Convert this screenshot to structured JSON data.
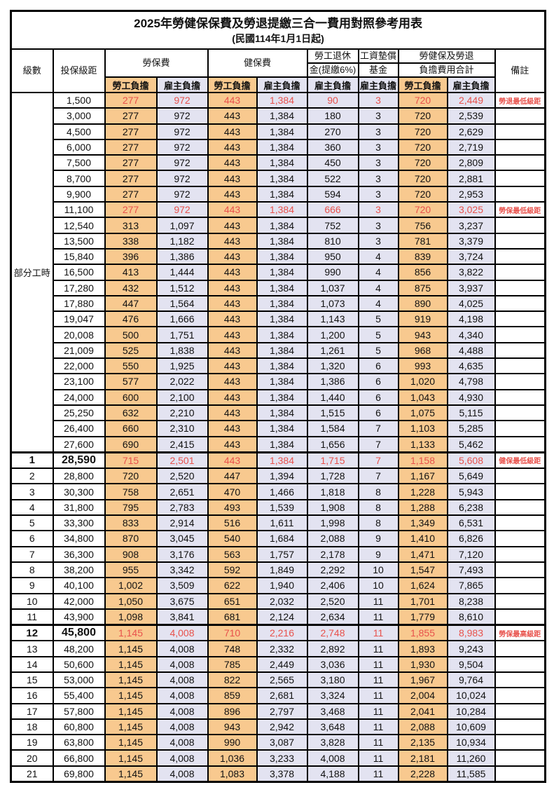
{
  "title": "2025年勞健保保費及勞退提繳三合一費用對照參考用表",
  "subtitle": "(民國114年1月1日起)",
  "columns": {
    "grade": "級數",
    "bracket": "投保級距",
    "labor_ins": "勞保費",
    "health_ins": "健保費",
    "pension_line1": "勞工退休",
    "pension_line2": "金(提繳6%)",
    "wage_fund_line1": "工資墊償",
    "wage_fund_line2": "基金",
    "total_line1": "勞健保及勞退",
    "total_line2": "負擔費用合計",
    "remark": "備註",
    "employee_share": "勞工負擔",
    "employer_share": "雇主負擔"
  },
  "part_time_label": "部分工時",
  "colors": {
    "employee_bg": "#F8C98F",
    "employer_bg": "#E3E3F1",
    "highlight_text": "#E8524C"
  },
  "chart_data": {
    "type": "table",
    "title": "2025年勞健保保費及勞退提繳三合一費用對照參考用表 (民國114年1月1日起)",
    "column_headers": [
      "級數",
      "投保級距",
      "勞保費 勞工負擔",
      "勞保費 雇主負擔",
      "健保費 勞工負擔",
      "健保費 雇主負擔",
      "勞工退休金(提繳6%) 雇主負擔",
      "工資墊償基金 雇主負擔",
      "勞健保及勞退負擔費用合計 勞工負擔",
      "勞健保及勞退負擔費用合計 雇主負擔",
      "備註"
    ]
  },
  "rows": [
    {
      "grade": "",
      "bracket": "1,500",
      "values": [
        "277",
        "972",
        "443",
        "1,384",
        "90",
        "3",
        "720",
        "2,449"
      ],
      "remark": "勞退最低級距",
      "red": true,
      "emph": false
    },
    {
      "grade": "",
      "bracket": "3,000",
      "values": [
        "277",
        "972",
        "443",
        "1,384",
        "180",
        "3",
        "720",
        "2,539"
      ],
      "remark": "",
      "red": false,
      "emph": false
    },
    {
      "grade": "",
      "bracket": "4,500",
      "values": [
        "277",
        "972",
        "443",
        "1,384",
        "270",
        "3",
        "720",
        "2,629"
      ],
      "remark": "",
      "red": false,
      "emph": false
    },
    {
      "grade": "",
      "bracket": "6,000",
      "values": [
        "277",
        "972",
        "443",
        "1,384",
        "360",
        "3",
        "720",
        "2,719"
      ],
      "remark": "",
      "red": false,
      "emph": false
    },
    {
      "grade": "",
      "bracket": "7,500",
      "values": [
        "277",
        "972",
        "443",
        "1,384",
        "450",
        "3",
        "720",
        "2,809"
      ],
      "remark": "",
      "red": false,
      "emph": false
    },
    {
      "grade": "",
      "bracket": "8,700",
      "values": [
        "277",
        "972",
        "443",
        "1,384",
        "522",
        "3",
        "720",
        "2,881"
      ],
      "remark": "",
      "red": false,
      "emph": false
    },
    {
      "grade": "",
      "bracket": "9,900",
      "values": [
        "277",
        "972",
        "443",
        "1,384",
        "594",
        "3",
        "720",
        "2,953"
      ],
      "remark": "",
      "red": false,
      "emph": false
    },
    {
      "grade": "",
      "bracket": "11,100",
      "values": [
        "277",
        "972",
        "443",
        "1,384",
        "666",
        "3",
        "720",
        "3,025"
      ],
      "remark": "勞保最低級距",
      "red": true,
      "emph": false
    },
    {
      "grade": "",
      "bracket": "12,540",
      "values": [
        "313",
        "1,097",
        "443",
        "1,384",
        "752",
        "3",
        "756",
        "3,237"
      ],
      "remark": "",
      "red": false,
      "emph": false
    },
    {
      "grade": "",
      "bracket": "13,500",
      "values": [
        "338",
        "1,182",
        "443",
        "1,384",
        "810",
        "3",
        "781",
        "3,379"
      ],
      "remark": "",
      "red": false,
      "emph": false
    },
    {
      "grade": "",
      "bracket": "15,840",
      "values": [
        "396",
        "1,386",
        "443",
        "1,384",
        "950",
        "4",
        "839",
        "3,724"
      ],
      "remark": "",
      "red": false,
      "emph": false
    },
    {
      "grade": "",
      "bracket": "16,500",
      "values": [
        "413",
        "1,444",
        "443",
        "1,384",
        "990",
        "4",
        "856",
        "3,822"
      ],
      "remark": "",
      "red": false,
      "emph": false
    },
    {
      "grade": "",
      "bracket": "17,280",
      "values": [
        "432",
        "1,512",
        "443",
        "1,384",
        "1,037",
        "4",
        "875",
        "3,937"
      ],
      "remark": "",
      "red": false,
      "emph": false
    },
    {
      "grade": "",
      "bracket": "17,880",
      "values": [
        "447",
        "1,564",
        "443",
        "1,384",
        "1,073",
        "4",
        "890",
        "4,025"
      ],
      "remark": "",
      "red": false,
      "emph": false
    },
    {
      "grade": "",
      "bracket": "19,047",
      "values": [
        "476",
        "1,666",
        "443",
        "1,384",
        "1,143",
        "5",
        "919",
        "4,198"
      ],
      "remark": "",
      "red": false,
      "emph": false
    },
    {
      "grade": "",
      "bracket": "20,008",
      "values": [
        "500",
        "1,751",
        "443",
        "1,384",
        "1,200",
        "5",
        "943",
        "4,340"
      ],
      "remark": "",
      "red": false,
      "emph": false
    },
    {
      "grade": "",
      "bracket": "21,009",
      "values": [
        "525",
        "1,838",
        "443",
        "1,384",
        "1,261",
        "5",
        "968",
        "4,488"
      ],
      "remark": "",
      "red": false,
      "emph": false
    },
    {
      "grade": "",
      "bracket": "22,000",
      "values": [
        "550",
        "1,925",
        "443",
        "1,384",
        "1,320",
        "6",
        "993",
        "4,635"
      ],
      "remark": "",
      "red": false,
      "emph": false
    },
    {
      "grade": "",
      "bracket": "23,100",
      "values": [
        "577",
        "2,022",
        "443",
        "1,384",
        "1,386",
        "6",
        "1,020",
        "4,798"
      ],
      "remark": "",
      "red": false,
      "emph": false
    },
    {
      "grade": "",
      "bracket": "24,000",
      "values": [
        "600",
        "2,100",
        "443",
        "1,384",
        "1,440",
        "6",
        "1,043",
        "4,930"
      ],
      "remark": "",
      "red": false,
      "emph": false
    },
    {
      "grade": "",
      "bracket": "25,250",
      "values": [
        "632",
        "2,210",
        "443",
        "1,384",
        "1,515",
        "6",
        "1,075",
        "5,115"
      ],
      "remark": "",
      "red": false,
      "emph": false
    },
    {
      "grade": "",
      "bracket": "26,400",
      "values": [
        "660",
        "2,310",
        "443",
        "1,384",
        "1,584",
        "7",
        "1,103",
        "5,285"
      ],
      "remark": "",
      "red": false,
      "emph": false
    },
    {
      "grade": "",
      "bracket": "27,600",
      "values": [
        "690",
        "2,415",
        "443",
        "1,384",
        "1,656",
        "7",
        "1,133",
        "5,462"
      ],
      "remark": "",
      "red": false,
      "emph": false
    },
    {
      "grade": "1",
      "bracket": "28,590",
      "values": [
        "715",
        "2,501",
        "443",
        "1,384",
        "1,715",
        "7",
        "1,158",
        "5,608"
      ],
      "remark": "健保最低級距",
      "red": true,
      "emph": true
    },
    {
      "grade": "2",
      "bracket": "28,800",
      "values": [
        "720",
        "2,520",
        "447",
        "1,394",
        "1,728",
        "7",
        "1,167",
        "5,649"
      ],
      "remark": "",
      "red": false,
      "emph": false
    },
    {
      "grade": "3",
      "bracket": "30,300",
      "values": [
        "758",
        "2,651",
        "470",
        "1,466",
        "1,818",
        "8",
        "1,228",
        "5,943"
      ],
      "remark": "",
      "red": false,
      "emph": false
    },
    {
      "grade": "4",
      "bracket": "31,800",
      "values": [
        "795",
        "2,783",
        "493",
        "1,539",
        "1,908",
        "8",
        "1,288",
        "6,238"
      ],
      "remark": "",
      "red": false,
      "emph": false
    },
    {
      "grade": "5",
      "bracket": "33,300",
      "values": [
        "833",
        "2,914",
        "516",
        "1,611",
        "1,998",
        "8",
        "1,349",
        "6,531"
      ],
      "remark": "",
      "red": false,
      "emph": false
    },
    {
      "grade": "6",
      "bracket": "34,800",
      "values": [
        "870",
        "3,045",
        "540",
        "1,684",
        "2,088",
        "9",
        "1,410",
        "6,826"
      ],
      "remark": "",
      "red": false,
      "emph": false
    },
    {
      "grade": "7",
      "bracket": "36,300",
      "values": [
        "908",
        "3,176",
        "563",
        "1,757",
        "2,178",
        "9",
        "1,471",
        "7,120"
      ],
      "remark": "",
      "red": false,
      "emph": false
    },
    {
      "grade": "8",
      "bracket": "38,200",
      "values": [
        "955",
        "3,342",
        "592",
        "1,849",
        "2,292",
        "10",
        "1,547",
        "7,493"
      ],
      "remark": "",
      "red": false,
      "emph": false
    },
    {
      "grade": "9",
      "bracket": "40,100",
      "values": [
        "1,002",
        "3,509",
        "622",
        "1,940",
        "2,406",
        "10",
        "1,624",
        "7,865"
      ],
      "remark": "",
      "red": false,
      "emph": false
    },
    {
      "grade": "10",
      "bracket": "42,000",
      "values": [
        "1,050",
        "3,675",
        "651",
        "2,032",
        "2,520",
        "11",
        "1,701",
        "8,238"
      ],
      "remark": "",
      "red": false,
      "emph": false
    },
    {
      "grade": "11",
      "bracket": "43,900",
      "values": [
        "1,098",
        "3,841",
        "681",
        "2,124",
        "2,634",
        "11",
        "1,779",
        "8,610"
      ],
      "remark": "",
      "red": false,
      "emph": false
    },
    {
      "grade": "12",
      "bracket": "45,800",
      "values": [
        "1,145",
        "4,008",
        "710",
        "2,216",
        "2,748",
        "11",
        "1,855",
        "8,983"
      ],
      "remark": "勞保最高級距",
      "red": true,
      "emph": true
    },
    {
      "grade": "13",
      "bracket": "48,200",
      "values": [
        "1,145",
        "4,008",
        "748",
        "2,332",
        "2,892",
        "11",
        "1,893",
        "9,243"
      ],
      "remark": "",
      "red": false,
      "emph": false
    },
    {
      "grade": "14",
      "bracket": "50,600",
      "values": [
        "1,145",
        "4,008",
        "785",
        "2,449",
        "3,036",
        "11",
        "1,930",
        "9,504"
      ],
      "remark": "",
      "red": false,
      "emph": false
    },
    {
      "grade": "15",
      "bracket": "53,000",
      "values": [
        "1,145",
        "4,008",
        "822",
        "2,565",
        "3,180",
        "11",
        "1,967",
        "9,764"
      ],
      "remark": "",
      "red": false,
      "emph": false
    },
    {
      "grade": "16",
      "bracket": "55,400",
      "values": [
        "1,145",
        "4,008",
        "859",
        "2,681",
        "3,324",
        "11",
        "2,004",
        "10,024"
      ],
      "remark": "",
      "red": false,
      "emph": false
    },
    {
      "grade": "17",
      "bracket": "57,800",
      "values": [
        "1,145",
        "4,008",
        "896",
        "2,797",
        "3,468",
        "11",
        "2,041",
        "10,284"
      ],
      "remark": "",
      "red": false,
      "emph": false
    },
    {
      "grade": "18",
      "bracket": "60,800",
      "values": [
        "1,145",
        "4,008",
        "943",
        "2,942",
        "3,648",
        "11",
        "2,088",
        "10,609"
      ],
      "remark": "",
      "red": false,
      "emph": false
    },
    {
      "grade": "19",
      "bracket": "63,800",
      "values": [
        "1,145",
        "4,008",
        "990",
        "3,087",
        "3,828",
        "11",
        "2,135",
        "10,934"
      ],
      "remark": "",
      "red": false,
      "emph": false
    },
    {
      "grade": "20",
      "bracket": "66,800",
      "values": [
        "1,145",
        "4,008",
        "1,036",
        "3,233",
        "4,008",
        "11",
        "2,181",
        "11,260"
      ],
      "remark": "",
      "red": false,
      "emph": false
    },
    {
      "grade": "21",
      "bracket": "69,800",
      "values": [
        "1,145",
        "4,008",
        "1,083",
        "3,378",
        "4,188",
        "11",
        "2,228",
        "11,585"
      ],
      "remark": "",
      "red": false,
      "emph": false
    }
  ]
}
